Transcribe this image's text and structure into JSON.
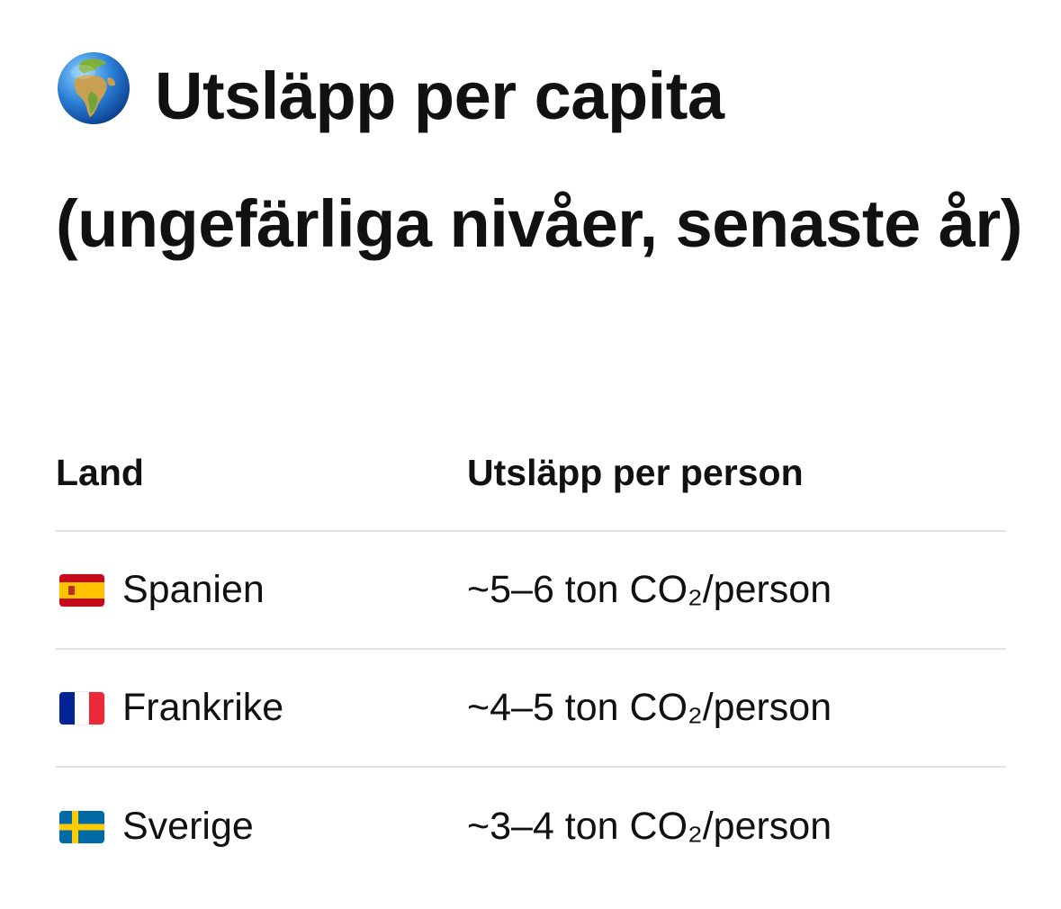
{
  "title": {
    "icon": "globe-europe-africa-icon",
    "text": "Utsläpp per capita (ungefärliga nivåer, senaste år)"
  },
  "table": {
    "headers": {
      "land": "Land",
      "value": "Utsläpp per person"
    },
    "rows": [
      {
        "flag": "spain-flag-icon",
        "land": "Spanien",
        "value": "~5–6 ton CO₂/person"
      },
      {
        "flag": "france-flag-icon",
        "land": "Frankrike",
        "value": "~4–5 ton CO₂/person"
      },
      {
        "flag": "sweden-flag-icon",
        "land": "Sverige",
        "value": "~3–4 ton CO₂/person"
      }
    ]
  },
  "colors": {
    "text": "#111111",
    "divider": "#e3e3e3",
    "spain_red": "#c60b1e",
    "spain_yellow": "#ffc400",
    "france_blue": "#002395",
    "france_red": "#ed2939",
    "sweden_blue": "#006aa7",
    "sweden_yellow": "#fecc00"
  }
}
